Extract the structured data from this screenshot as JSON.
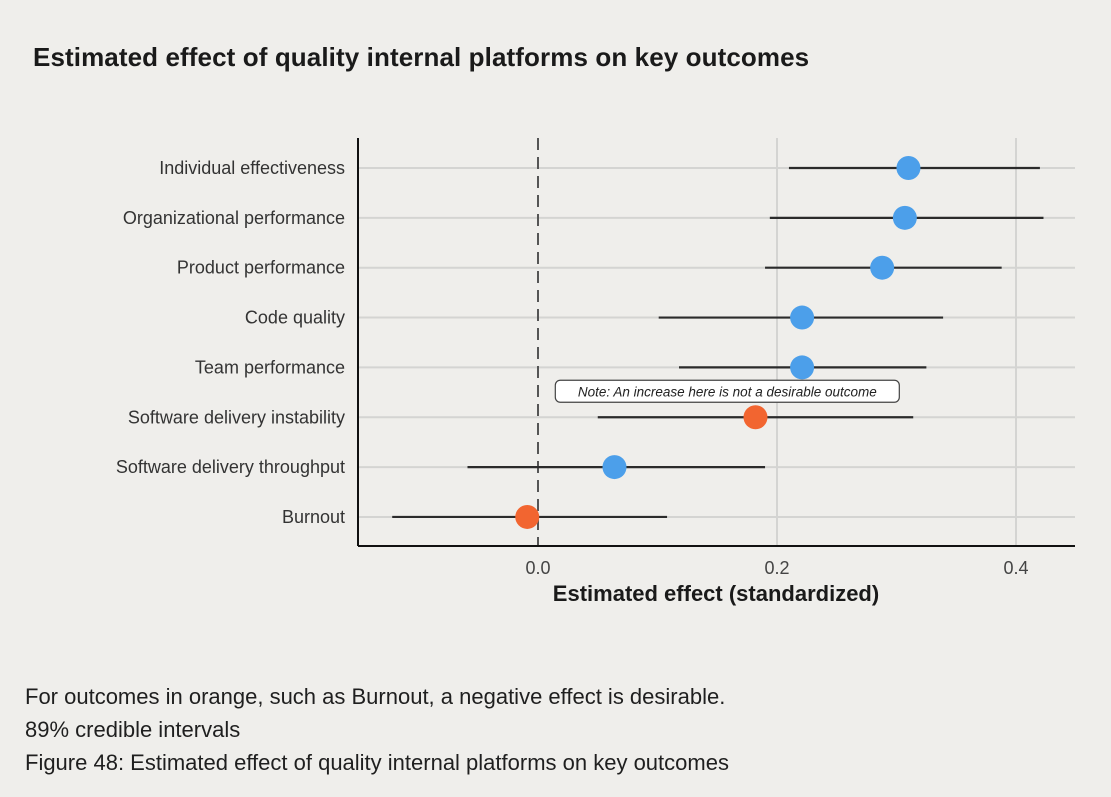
{
  "title": "Estimated effect of quality internal platforms on key outcomes",
  "colors": {
    "background": "#efeeeb",
    "point_default": "#4c9fea",
    "point_negative_desirable": "#f26530",
    "interval_line": "#2b2b2b",
    "grid": "#d4d4d2",
    "axis": "#111111"
  },
  "chart_data": {
    "type": "forest",
    "title": "Estimated effect of quality internal platforms on key outcomes",
    "xlabel": "Estimated effect (standardized)",
    "ylabel": "",
    "xlim": [
      -0.15,
      0.45
    ],
    "xticks": [
      0.0,
      0.2,
      0.4
    ],
    "xtick_labels": [
      "0.0",
      "0.2",
      "0.4"
    ],
    "reference_line": 0.0,
    "grid": true,
    "interval": "89% credible intervals",
    "rows": [
      {
        "label": "Individual effectiveness",
        "estimate": 0.31,
        "lower": 0.21,
        "upper": 0.42,
        "color_group": "default"
      },
      {
        "label": "Organizational performance",
        "estimate": 0.307,
        "lower": 0.194,
        "upper": 0.423,
        "color_group": "default"
      },
      {
        "label": "Product performance",
        "estimate": 0.288,
        "lower": 0.19,
        "upper": 0.388,
        "color_group": "default"
      },
      {
        "label": "Code quality",
        "estimate": 0.221,
        "lower": 0.101,
        "upper": 0.339,
        "color_group": "default"
      },
      {
        "label": "Team performance",
        "estimate": 0.221,
        "lower": 0.118,
        "upper": 0.325,
        "color_group": "default"
      },
      {
        "label": "Software delivery instability",
        "estimate": 0.182,
        "lower": 0.05,
        "upper": 0.314,
        "color_group": "negative_desirable"
      },
      {
        "label": "Software delivery throughput",
        "estimate": 0.064,
        "lower": -0.059,
        "upper": 0.19,
        "color_group": "default"
      },
      {
        "label": "Burnout",
        "estimate": -0.009,
        "lower": -0.122,
        "upper": 0.108,
        "color_group": "negative_desirable"
      }
    ],
    "annotations": [
      {
        "text": "Note: An increase here is not a desirable outcome",
        "row": "Software delivery instability",
        "x": 0.158
      }
    ]
  },
  "footnotes": [
    "For outcomes in orange, such as Burnout, a negative effect is desirable.",
    "89% credible intervals",
    "Figure 48: Estimated effect of quality internal platforms on key outcomes"
  ]
}
